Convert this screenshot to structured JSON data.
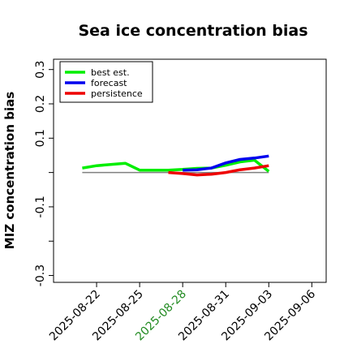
{
  "chart_data": {
    "type": "line",
    "title": "Sea ice concentration bias",
    "xlabel": "",
    "ylabel": "MIZ concentration bias",
    "xlim": [
      "2025-08-19",
      "2025-09-07"
    ],
    "ylim": [
      -0.32,
      0.33
    ],
    "y_ticks": [
      {
        "value": 0.3,
        "label": "0.3"
      },
      {
        "value": 0.2,
        "label": "0.2"
      },
      {
        "value": 0.1,
        "label": "0.1"
      },
      {
        "value": -0.1,
        "label": "-0.1"
      },
      {
        "value": -0.3,
        "label": "-0.3"
      }
    ],
    "y_minor_ticks": [
      0.0,
      -0.2
    ],
    "x_ticks": [
      {
        "date": "2025-08-22",
        "label": "2025-08-22",
        "color": "#000000"
      },
      {
        "date": "2025-08-25",
        "label": "2025-08-25",
        "color": "#000000"
      },
      {
        "date": "2025-08-28",
        "label": "2025-08-28",
        "color": "#228b22"
      },
      {
        "date": "2025-08-31",
        "label": "2025-08-31",
        "color": "#000000"
      },
      {
        "date": "2025-09-03",
        "label": "2025-09-03",
        "color": "#000000"
      },
      {
        "date": "2025-09-06",
        "label": "2025-09-06",
        "color": "#000000"
      }
    ],
    "reference_line": {
      "y": 0.0,
      "from": "2025-08-21",
      "to": "2025-09-03",
      "color": "#808080"
    },
    "legend": {
      "position": "top-left"
    },
    "series": [
      {
        "name": "best est.",
        "color": "#00ee00",
        "x": [
          "2025-08-21",
          "2025-08-22",
          "2025-08-24",
          "2025-08-25",
          "2025-08-26",
          "2025-08-27",
          "2025-08-28",
          "2025-08-29",
          "2025-08-30",
          "2025-08-31",
          "2025-09-01",
          "2025-09-02",
          "2025-09-03"
        ],
        "y": [
          0.013,
          0.02,
          0.027,
          0.007,
          0.007,
          0.007,
          0.009,
          0.012,
          0.013,
          0.021,
          0.031,
          0.036,
          0.003
        ]
      },
      {
        "name": "forecast",
        "color": "#0000ee",
        "x": [
          "2025-08-28",
          "2025-08-29",
          "2025-08-30",
          "2025-08-31",
          "2025-09-01",
          "2025-09-02",
          "2025-09-03"
        ],
        "y": [
          0.007,
          0.008,
          0.013,
          0.028,
          0.038,
          0.042,
          0.048
        ]
      },
      {
        "name": "persistence",
        "color": "#ee0000",
        "x": [
          "2025-08-27",
          "2025-08-28",
          "2025-08-29",
          "2025-08-30",
          "2025-08-31",
          "2025-09-01",
          "2025-09-02",
          "2025-09-03"
        ],
        "y": [
          0.0,
          -0.003,
          -0.007,
          -0.005,
          0.0,
          0.008,
          0.013,
          0.02
        ]
      }
    ]
  }
}
